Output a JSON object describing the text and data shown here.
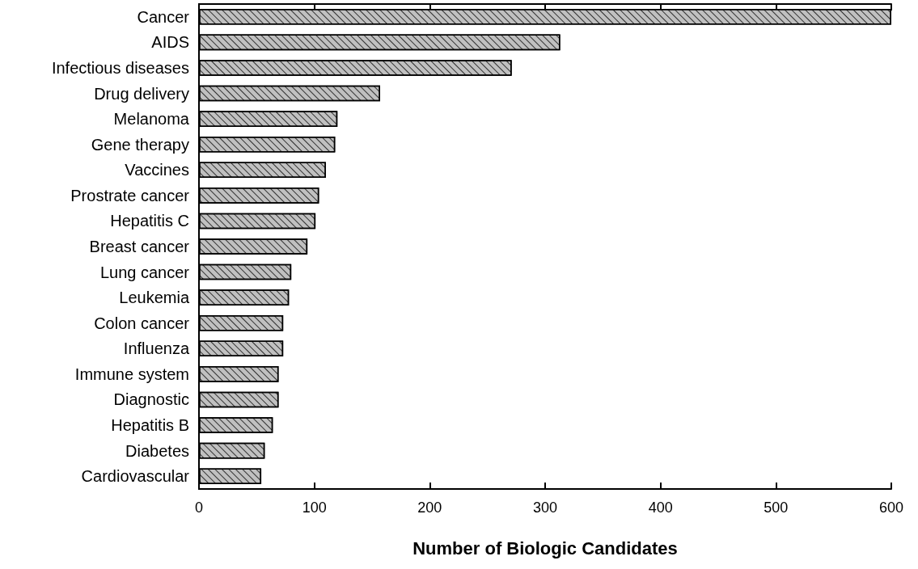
{
  "chart_data": {
    "type": "bar",
    "orientation": "horizontal",
    "xlabel": "Number of Biologic Candidates",
    "categories": [
      "Cancer",
      "AIDS",
      "Infectious diseases",
      "Drug delivery",
      "Melanoma",
      "Gene therapy",
      "Vaccines",
      "Prostrate cancer",
      "Hepatitis C",
      "Breast cancer",
      "Lung cancer",
      "Leukemia",
      "Colon cancer",
      "Influenza",
      "Immune system",
      "Diagnostic",
      "Hepatitis B",
      "Diabetes",
      "Cardiovascular"
    ],
    "values": [
      600,
      313,
      271,
      157,
      120,
      118,
      110,
      104,
      101,
      94,
      80,
      78,
      73,
      73,
      69,
      69,
      64,
      57,
      54
    ],
    "color": "#c0c0c0",
    "xlim": [
      0,
      600
    ],
    "xticks": [
      0,
      100,
      200,
      300,
      400,
      500,
      600
    ]
  }
}
